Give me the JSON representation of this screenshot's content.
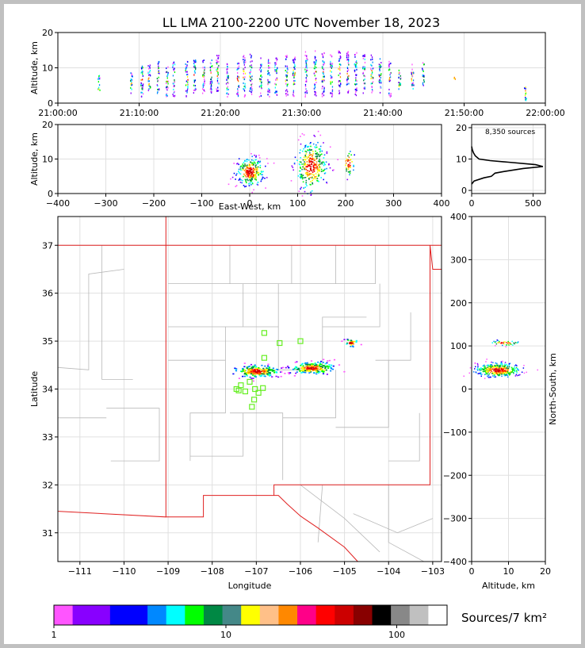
{
  "title": "LL LMA 2100-2200 UTC November 18, 2023",
  "source_count_label": "8,350 sources",
  "colorbar": {
    "label": "Sources/7 km²",
    "ticks": [
      "1",
      "10",
      "100"
    ],
    "colors": [
      "#ff55ff",
      "#8800ff",
      "#8800ff",
      "#0000ff",
      "#0000ff",
      "#0088ff",
      "#00ffff",
      "#00ff00",
      "#008844",
      "#448888",
      "#ffff00",
      "#ffc088",
      "#ff8800",
      "#ff0088",
      "#ff0000",
      "#cc0000",
      "#880000",
      "#000000",
      "#888888",
      "#c0c0c0",
      "#ffffff"
    ]
  },
  "chart_data": [
    {
      "panel": "altitude-vs-time",
      "type": "scatter",
      "xlabel": "",
      "ylabel": "Altitude, km",
      "x_ticks": [
        "21:00:00",
        "21:10:00",
        "21:20:00",
        "21:30:00",
        "21:40:00",
        "21:50:00",
        "22:00:00"
      ],
      "y_ticks": [
        "0",
        "10",
        "20"
      ],
      "xlim_minutes": [
        0,
        60
      ],
      "ylim": [
        0,
        20
      ],
      "grid": true,
      "columns": [
        {
          "t": 5,
          "lo": 3,
          "hi": 8
        },
        {
          "t": 9,
          "lo": 3,
          "hi": 9
        },
        {
          "t": 10.3,
          "lo": 2,
          "hi": 12
        },
        {
          "t": 11.2,
          "lo": 2,
          "hi": 11
        },
        {
          "t": 12.3,
          "lo": 3,
          "hi": 12
        },
        {
          "t": 13.4,
          "lo": 2,
          "hi": 11
        },
        {
          "t": 14.2,
          "lo": 2,
          "hi": 12
        },
        {
          "t": 15.8,
          "lo": 2,
          "hi": 12
        },
        {
          "t": 16.8,
          "lo": 3,
          "hi": 13
        },
        {
          "t": 17.9,
          "lo": 3,
          "hi": 13
        },
        {
          "t": 18.8,
          "lo": 3,
          "hi": 13
        },
        {
          "t": 19.6,
          "lo": 3,
          "hi": 14
        },
        {
          "t": 20.8,
          "lo": 2,
          "hi": 12
        },
        {
          "t": 22.1,
          "lo": 2,
          "hi": 12
        },
        {
          "t": 22.9,
          "lo": 2,
          "hi": 14
        },
        {
          "t": 23.7,
          "lo": 2,
          "hi": 14
        },
        {
          "t": 24.9,
          "lo": 2,
          "hi": 13
        },
        {
          "t": 25.9,
          "lo": 2,
          "hi": 13
        },
        {
          "t": 26.8,
          "lo": 2,
          "hi": 13
        },
        {
          "t": 28.1,
          "lo": 2,
          "hi": 14
        },
        {
          "t": 29.0,
          "lo": 2,
          "hi": 14
        },
        {
          "t": 30.5,
          "lo": 2,
          "hi": 15
        },
        {
          "t": 31.6,
          "lo": 2,
          "hi": 15
        },
        {
          "t": 32.6,
          "lo": 2,
          "hi": 15
        },
        {
          "t": 33.6,
          "lo": 2,
          "hi": 14
        },
        {
          "t": 34.6,
          "lo": 2,
          "hi": 15
        },
        {
          "t": 35.6,
          "lo": 2,
          "hi": 15
        },
        {
          "t": 36.6,
          "lo": 2,
          "hi": 15
        },
        {
          "t": 37.6,
          "lo": 3,
          "hi": 14
        },
        {
          "t": 38.6,
          "lo": 3,
          "hi": 14
        },
        {
          "t": 39.6,
          "lo": 3,
          "hi": 13
        },
        {
          "t": 40.8,
          "lo": 2,
          "hi": 12
        },
        {
          "t": 42.0,
          "lo": 4,
          "hi": 10
        },
        {
          "t": 43.6,
          "lo": 4,
          "hi": 12
        },
        {
          "t": 44.9,
          "lo": 5,
          "hi": 12
        },
        {
          "t": 48.8,
          "lo": 7,
          "hi": 8
        },
        {
          "t": 57.5,
          "lo": 1,
          "hi": 5
        }
      ]
    },
    {
      "panel": "altitude-vs-east-west",
      "type": "heatmap",
      "xlabel": "East-West, km",
      "ylabel": "Altitude, km",
      "x_ticks": [
        "−400",
        "−300",
        "−200",
        "−100",
        "0",
        "100",
        "200",
        "300",
        "400"
      ],
      "y_ticks": [
        "0",
        "10",
        "20"
      ],
      "xlim": [
        -400,
        400
      ],
      "ylim": [
        0,
        20
      ],
      "grid": true,
      "clusters": [
        {
          "xc": 0,
          "yc": 6.5,
          "sx": 14,
          "sy": 2,
          "n": 260
        },
        {
          "xc": 128,
          "yc": 8,
          "sx": 16,
          "sy": 3.5,
          "n": 320
        },
        {
          "xc": 205,
          "yc": 9,
          "sx": 6,
          "sy": 2,
          "n": 40
        }
      ]
    },
    {
      "panel": "altitude-histogram",
      "type": "line",
      "xlabel": "",
      "ylabel": "",
      "x_ticks": [
        "0",
        "500"
      ],
      "y_ticks": [
        "0",
        "10",
        "20"
      ],
      "xlim": [
        0,
        600
      ],
      "ylim": [
        -1,
        21
      ],
      "grid": true,
      "profile": [
        [
          0,
          2
        ],
        [
          20,
          3
        ],
        [
          100,
          4
        ],
        [
          160,
          4.5
        ],
        [
          190,
          5.5
        ],
        [
          260,
          6
        ],
        [
          420,
          7
        ],
        [
          580,
          7.6
        ],
        [
          520,
          8.2
        ],
        [
          300,
          9
        ],
        [
          150,
          9.5
        ],
        [
          60,
          10
        ],
        [
          30,
          11
        ],
        [
          15,
          12
        ],
        [
          5,
          13
        ],
        [
          0,
          14
        ]
      ]
    },
    {
      "panel": "plan-view",
      "type": "heatmap",
      "xlabel": "Longitude",
      "ylabel": "Latitude",
      "x_ticks": [
        "−111",
        "−110",
        "−109",
        "−108",
        "−107",
        "−106",
        "−105",
        "−104",
        "−103"
      ],
      "y_ticks": [
        "31",
        "32",
        "33",
        "34",
        "35",
        "36",
        "37"
      ],
      "xlim": [
        -111.5,
        -102.8
      ],
      "ylim": [
        30.4,
        37.6
      ],
      "grid": true,
      "clusters": [
        {
          "xc": -107.0,
          "yc": 34.38,
          "sx": 0.25,
          "sy": 0.06,
          "n": 240
        },
        {
          "xc": -105.75,
          "yc": 34.45,
          "sx": 0.25,
          "sy": 0.06,
          "n": 220
        },
        {
          "xc": -104.87,
          "yc": 34.98,
          "sx": 0.07,
          "sy": 0.04,
          "n": 30
        }
      ],
      "stations": [
        [
          -106.82,
          35.17
        ],
        [
          -106.47,
          34.96
        ],
        [
          -106.0,
          35.0
        ],
        [
          -106.82,
          34.65
        ],
        [
          -107.15,
          34.15
        ],
        [
          -107.03,
          34.0
        ],
        [
          -106.95,
          33.92
        ],
        [
          -107.05,
          33.78
        ],
        [
          -107.1,
          33.63
        ],
        [
          -107.35,
          34.08
        ],
        [
          -107.4,
          33.97
        ],
        [
          -107.25,
          33.95
        ],
        [
          -106.85,
          34.02
        ],
        [
          -107.45,
          34.0
        ]
      ]
    },
    {
      "panel": "north-south-vs-altitude",
      "type": "heatmap",
      "xlabel": "Altitude, km",
      "ylabel": "North-South, km",
      "x_ticks": [
        "0",
        "10",
        "20"
      ],
      "y_ticks": [
        "−400",
        "−300",
        "−200",
        "−100",
        "0",
        "100",
        "200",
        "300",
        "400"
      ],
      "xlim": [
        0,
        20
      ],
      "ylim": [
        -400,
        400
      ],
      "grid": true,
      "clusters": [
        {
          "xc": 7,
          "yc": 45,
          "sx": 3,
          "sy": 8,
          "n": 400
        },
        {
          "xc": 9,
          "yc": 108,
          "sx": 2,
          "sy": 3,
          "n": 40
        }
      ]
    }
  ]
}
